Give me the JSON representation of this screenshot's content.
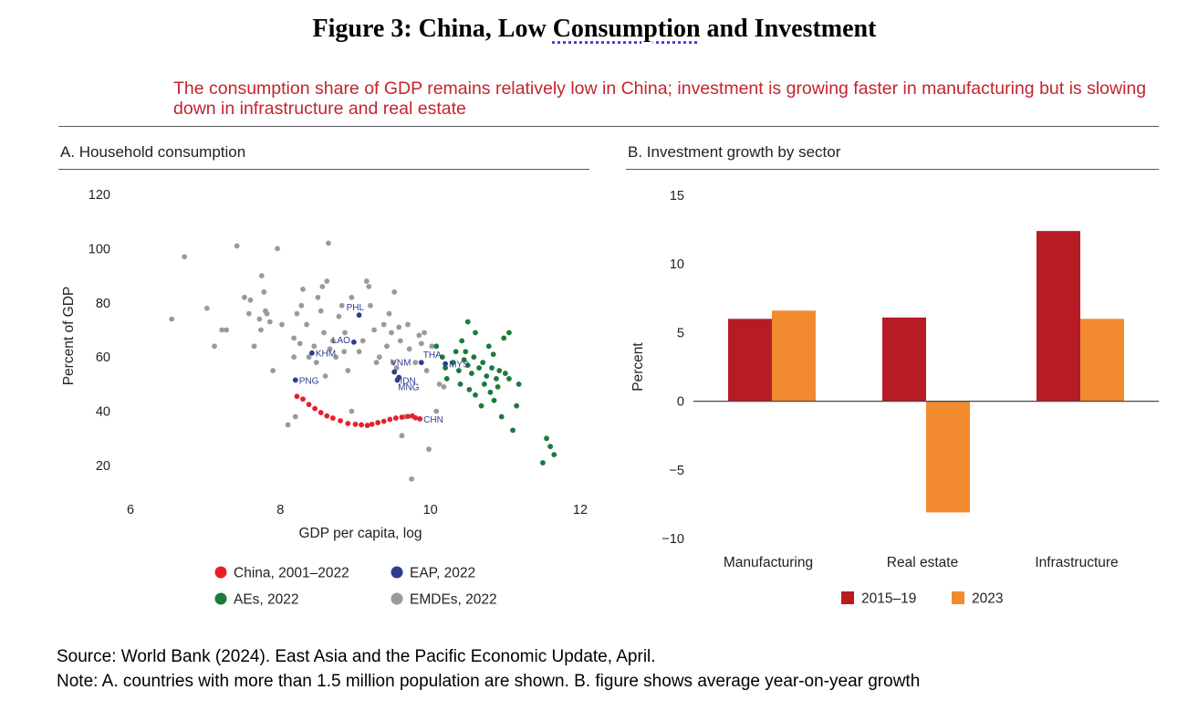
{
  "title": {
    "prefix": "Figure 3: China, Low ",
    "underlined": "Consumption",
    "suffix": " and Investment"
  },
  "subtitle": "The consumption share of GDP remains relatively low in China; investment is growing faster in manufacturing but is slowing down in infrastructure and real estate",
  "footer": {
    "source": "Source: World Bank (2024). East Asia and the Pacific Economic Update, April.",
    "note": "Note: A. countries with more than 1.5 million population are shown. B. figure shows average year-on-year growth"
  },
  "colors": {
    "china": "#e8202a",
    "eap": "#2e3d8f",
    "aes": "#1c7a3b",
    "emdes": "#9a9a9a",
    "bar2015": "#b71c25",
    "bar2023": "#f28a30"
  },
  "chart_data": [
    {
      "type": "scatter",
      "title": "A. Household consumption",
      "xlabel": "GDP per capita, log",
      "ylabel": "Percent of GDP",
      "xlim": [
        6,
        12
      ],
      "ylim": [
        10,
        120
      ],
      "xticks": [
        6,
        8,
        10,
        12
      ],
      "yticks": [
        20,
        40,
        60,
        80,
        100,
        120
      ],
      "legend": [
        {
          "key": "china",
          "label": "China, 2001–2022"
        },
        {
          "key": "eap",
          "label": "EAP, 2022"
        },
        {
          "key": "aes",
          "label": "AEs, 2022"
        },
        {
          "key": "emdes",
          "label": "EMDEs, 2022"
        }
      ],
      "series": [
        {
          "name": "China, 2001–2022",
          "key": "china",
          "points": [
            [
              8.22,
              45.5
            ],
            [
              8.3,
              44.5
            ],
            [
              8.38,
              42.5
            ],
            [
              8.46,
              41
            ],
            [
              8.54,
              39.5
            ],
            [
              8.62,
              38.3
            ],
            [
              8.7,
              37.5
            ],
            [
              8.8,
              36.5
            ],
            [
              8.9,
              35.5
            ],
            [
              9.0,
              35.2
            ],
            [
              9.08,
              35
            ],
            [
              9.16,
              34.8
            ],
            [
              9.22,
              35.2
            ],
            [
              9.3,
              35.8
            ],
            [
              9.38,
              36.3
            ],
            [
              9.46,
              37
            ],
            [
              9.54,
              37.5
            ],
            [
              9.62,
              37.8
            ],
            [
              9.7,
              38.1
            ],
            [
              9.76,
              38.3
            ],
            [
              9.8,
              37.6
            ],
            [
              9.86,
              37.2
            ]
          ]
        },
        {
          "name": "EAP, 2022",
          "key": "eap",
          "points": [
            [
              8.2,
              51.5,
              "PNG"
            ],
            [
              8.42,
              61.5,
              "KHM"
            ],
            [
              8.98,
              65.5,
              "LAO"
            ],
            [
              9.05,
              75.5,
              "PHL"
            ],
            [
              9.52,
              54.5,
              "VNM"
            ],
            [
              9.56,
              51.5,
              "IDN"
            ],
            [
              9.58,
              52.5,
              "MNG"
            ],
            [
              9.88,
              58,
              "THA"
            ],
            [
              10.2,
              57.5,
              "MYS"
            ]
          ]
        },
        {
          "name": "AEs, 2022",
          "key": "aes",
          "points": [
            [
              10.08,
              64
            ],
            [
              10.16,
              60
            ],
            [
              10.2,
              56
            ],
            [
              10.22,
              52
            ],
            [
              10.3,
              58
            ],
            [
              10.34,
              62
            ],
            [
              10.38,
              55
            ],
            [
              10.4,
              50
            ],
            [
              10.42,
              66
            ],
            [
              10.45,
              59
            ],
            [
              10.47,
              62
            ],
            [
              10.5,
              73
            ],
            [
              10.5,
              57
            ],
            [
              10.52,
              48
            ],
            [
              10.55,
              54
            ],
            [
              10.58,
              60
            ],
            [
              10.6,
              69
            ],
            [
              10.6,
              46
            ],
            [
              10.65,
              56
            ],
            [
              10.68,
              42
            ],
            [
              10.7,
              58
            ],
            [
              10.72,
              50
            ],
            [
              10.75,
              53
            ],
            [
              10.78,
              64
            ],
            [
              10.8,
              47
            ],
            [
              10.82,
              56
            ],
            [
              10.84,
              61
            ],
            [
              10.85,
              44
            ],
            [
              10.88,
              52
            ],
            [
              10.9,
              49
            ],
            [
              10.92,
              55
            ],
            [
              10.95,
              38
            ],
            [
              10.98,
              67
            ],
            [
              11.0,
              54
            ],
            [
              11.05,
              52
            ],
            [
              11.05,
              69
            ],
            [
              11.1,
              33
            ],
            [
              11.15,
              42
            ],
            [
              11.18,
              50
            ],
            [
              11.5,
              21
            ],
            [
              11.55,
              30
            ],
            [
              11.6,
              27
            ],
            [
              11.65,
              24
            ]
          ]
        },
        {
          "name": "EMDEs, 2022",
          "key": "emdes",
          "points": [
            [
              6.55,
              74
            ],
            [
              6.72,
              97
            ],
            [
              7.02,
              78
            ],
            [
              7.12,
              64
            ],
            [
              7.22,
              70
            ],
            [
              7.28,
              70
            ],
            [
              7.42,
              101
            ],
            [
              7.52,
              82
            ],
            [
              7.58,
              76
            ],
            [
              7.6,
              81
            ],
            [
              7.65,
              64
            ],
            [
              7.72,
              74
            ],
            [
              7.74,
              70
            ],
            [
              7.75,
              90
            ],
            [
              7.78,
              84
            ],
            [
              7.8,
              77
            ],
            [
              7.82,
              76
            ],
            [
              7.86,
              73
            ],
            [
              7.9,
              55
            ],
            [
              7.96,
              100
            ],
            [
              8.02,
              72
            ],
            [
              8.1,
              35
            ],
            [
              8.18,
              67
            ],
            [
              8.18,
              60
            ],
            [
              8.2,
              38
            ],
            [
              8.22,
              76
            ],
            [
              8.26,
              65
            ],
            [
              8.28,
              79
            ],
            [
              8.3,
              85
            ],
            [
              8.35,
              72
            ],
            [
              8.38,
              60
            ],
            [
              8.45,
              64
            ],
            [
              8.48,
              58
            ],
            [
              8.5,
              82
            ],
            [
              8.54,
              77
            ],
            [
              8.56,
              86
            ],
            [
              8.58,
              69
            ],
            [
              8.6,
              53
            ],
            [
              8.62,
              88
            ],
            [
              8.64,
              102
            ],
            [
              8.66,
              63
            ],
            [
              8.7,
              66
            ],
            [
              8.74,
              60
            ],
            [
              8.78,
              75
            ],
            [
              8.82,
              79
            ],
            [
              8.86,
              69
            ],
            [
              8.9,
              55
            ],
            [
              8.95,
              82
            ],
            [
              9.05,
              62
            ],
            [
              9.1,
              66
            ],
            [
              9.15,
              88
            ],
            [
              9.18,
              86
            ],
            [
              9.2,
              79
            ],
            [
              9.25,
              70
            ],
            [
              9.28,
              58
            ],
            [
              9.32,
              60
            ],
            [
              9.38,
              72
            ],
            [
              9.42,
              64
            ],
            [
              9.45,
              76
            ],
            [
              9.48,
              69
            ],
            [
              9.5,
              58
            ],
            [
              9.52,
              84
            ],
            [
              9.55,
              56
            ],
            [
              9.58,
              71
            ],
            [
              9.6,
              66
            ],
            [
              9.62,
              31
            ],
            [
              9.66,
              38
            ],
            [
              9.7,
              72
            ],
            [
              9.72,
              63
            ],
            [
              9.75,
              15
            ],
            [
              9.8,
              58
            ],
            [
              9.85,
              68
            ],
            [
              9.88,
              65
            ],
            [
              9.92,
              69
            ],
            [
              9.95,
              55
            ],
            [
              9.98,
              26
            ],
            [
              10.02,
              64
            ],
            [
              10.08,
              40
            ],
            [
              10.12,
              50
            ],
            [
              10.18,
              49
            ],
            [
              8.85,
              62
            ],
            [
              8.95,
              40
            ]
          ]
        }
      ]
    },
    {
      "type": "bar",
      "title": "B. Investment growth by sector",
      "xlabel": "",
      "ylabel": "Percent",
      "categories": [
        "Manufacturing",
        "Real estate",
        "Infrastructure"
      ],
      "ylim": [
        -10,
        15
      ],
      "yticks": [
        -10,
        -5,
        0,
        5,
        10,
        15
      ],
      "series": [
        {
          "name": "2015–19",
          "key": "bar2015",
          "values": [
            6.0,
            6.1,
            12.4
          ]
        },
        {
          "name": "2023",
          "key": "bar2023",
          "values": [
            6.6,
            -8.1,
            6.0
          ]
        }
      ]
    }
  ]
}
